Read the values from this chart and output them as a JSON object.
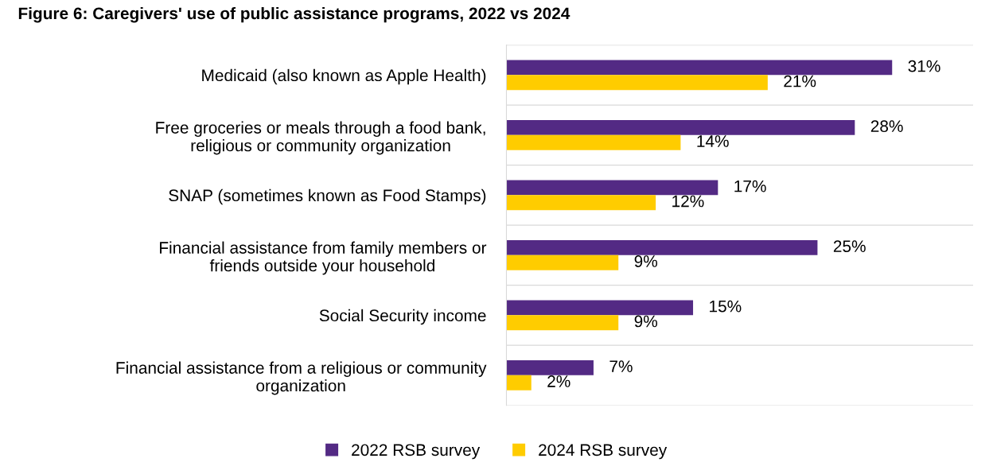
{
  "chart_data": {
    "type": "bar",
    "orientation": "horizontal",
    "title": "Figure 6: Caregivers' use of public assistance programs, 2022 vs 2024",
    "categories": [
      "Medicaid (also known as Apple Health)",
      "Free groceries or meals through a food bank,\nreligious or community organization",
      "SNAP (sometimes known as Food Stamps)",
      "Financial assistance from family members or\nfriends outside your household",
      "Social Security income",
      "Financial assistance from a religious or community\norganization"
    ],
    "series": [
      {
        "name": "2022 RSB survey",
        "color": "#532a84",
        "values": [
          31,
          28,
          17,
          25,
          15,
          7
        ],
        "value_labels": [
          "31%",
          "28%",
          "17%",
          "25%",
          "15%",
          "7%"
        ]
      },
      {
        "name": "2024 RSB survey",
        "color": "#ffcc00",
        "values": [
          21,
          14,
          12,
          9,
          9,
          2
        ],
        "value_labels": [
          "21%",
          "14%",
          "12%",
          "9%",
          "9%",
          "2%"
        ]
      }
    ],
    "grid": "y",
    "legend": "bottom"
  }
}
